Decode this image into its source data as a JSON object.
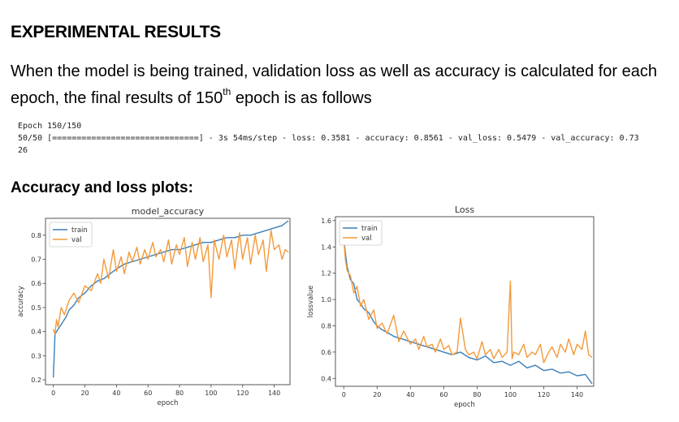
{
  "heading": "EXPERIMENTAL RESULTS",
  "paragraph": {
    "before": "When the model is being trained, validation loss as well as accuracy is calculated for each epoch, the final results of 150",
    "sup": "th",
    "after": " epoch is as follows"
  },
  "console": {
    "line1": "Epoch 150/150",
    "line2": "50/50 [==============================] - 3s 54ms/step - loss: 0.3581 - accuracy: 0.8561 - val_loss: 0.5479 - val_accuracy: 0.73",
    "line3": "26"
  },
  "subheading": "Accuracy and loss plots:",
  "colors": {
    "train": "#3a7fb8",
    "val": "#f39a3a"
  },
  "chart_data": [
    {
      "type": "line",
      "title": "model_accuracy",
      "xlabel": "epoch",
      "ylabel": "accuracy",
      "xlim": [
        -5,
        150
      ],
      "ylim": [
        0.18,
        0.87
      ],
      "xticks": [
        0,
        20,
        40,
        60,
        80,
        100,
        120,
        140
      ],
      "yticks": [
        0.2,
        0.3,
        0.4,
        0.5,
        0.6,
        0.7,
        0.8
      ],
      "legend": "top-left",
      "grid": false,
      "series": [
        {
          "name": "train",
          "x": [
            0,
            1,
            2,
            3,
            5,
            8,
            10,
            13,
            16,
            20,
            24,
            28,
            32,
            36,
            40,
            45,
            50,
            55,
            60,
            65,
            70,
            75,
            80,
            85,
            90,
            95,
            100,
            105,
            110,
            115,
            120,
            125,
            130,
            135,
            140,
            145,
            149
          ],
          "y": [
            0.21,
            0.39,
            0.4,
            0.41,
            0.43,
            0.46,
            0.49,
            0.51,
            0.54,
            0.56,
            0.59,
            0.61,
            0.62,
            0.64,
            0.66,
            0.68,
            0.69,
            0.7,
            0.71,
            0.72,
            0.73,
            0.74,
            0.74,
            0.75,
            0.76,
            0.77,
            0.77,
            0.78,
            0.79,
            0.79,
            0.8,
            0.8,
            0.81,
            0.82,
            0.83,
            0.84,
            0.86
          ]
        },
        {
          "name": "val",
          "x": [
            0,
            1,
            2,
            3,
            5,
            7,
            10,
            13,
            16,
            20,
            24,
            28,
            30,
            32,
            35,
            38,
            40,
            43,
            45,
            48,
            50,
            53,
            55,
            58,
            60,
            63,
            65,
            68,
            70,
            73,
            75,
            78,
            80,
            83,
            85,
            88,
            90,
            93,
            95,
            98,
            100,
            102,
            105,
            108,
            110,
            113,
            115,
            118,
            120,
            123,
            125,
            128,
            130,
            133,
            135,
            138,
            140,
            143,
            145,
            147,
            149
          ],
          "y": [
            0.41,
            0.39,
            0.45,
            0.42,
            0.5,
            0.47,
            0.53,
            0.56,
            0.52,
            0.59,
            0.57,
            0.64,
            0.6,
            0.7,
            0.62,
            0.74,
            0.65,
            0.71,
            0.64,
            0.73,
            0.69,
            0.75,
            0.68,
            0.74,
            0.7,
            0.77,
            0.71,
            0.74,
            0.69,
            0.78,
            0.68,
            0.76,
            0.72,
            0.79,
            0.67,
            0.77,
            0.7,
            0.79,
            0.69,
            0.76,
            0.54,
            0.78,
            0.7,
            0.8,
            0.71,
            0.78,
            0.66,
            0.81,
            0.7,
            0.79,
            0.68,
            0.8,
            0.72,
            0.78,
            0.65,
            0.82,
            0.74,
            0.76,
            0.7,
            0.74,
            0.73
          ]
        }
      ]
    },
    {
      "type": "line",
      "title": "Loss",
      "xlabel": "epoch",
      "ylabel": "lossvalue",
      "xlim": [
        -5,
        150
      ],
      "ylim": [
        0.34,
        1.63
      ],
      "xticks": [
        0,
        20,
        40,
        60,
        80,
        100,
        120,
        140
      ],
      "yticks": [
        0.4,
        0.6,
        0.8,
        1.0,
        1.2,
        1.4,
        1.6
      ],
      "legend": "top-left",
      "grid": false,
      "series": [
        {
          "name": "train",
          "x": [
            0,
            1,
            2,
            4,
            6,
            8,
            10,
            12,
            15,
            18,
            20,
            23,
            26,
            30,
            35,
            40,
            45,
            50,
            55,
            60,
            65,
            70,
            75,
            80,
            85,
            90,
            95,
            100,
            105,
            110,
            115,
            120,
            125,
            130,
            135,
            140,
            145,
            149
          ],
          "y": [
            1.46,
            1.35,
            1.25,
            1.15,
            1.12,
            1.0,
            0.97,
            0.93,
            0.9,
            0.83,
            0.8,
            0.77,
            0.75,
            0.72,
            0.7,
            0.68,
            0.66,
            0.64,
            0.62,
            0.6,
            0.58,
            0.6,
            0.56,
            0.54,
            0.57,
            0.52,
            0.53,
            0.5,
            0.53,
            0.48,
            0.5,
            0.46,
            0.47,
            0.44,
            0.45,
            0.42,
            0.43,
            0.36
          ]
        },
        {
          "name": "val",
          "x": [
            0,
            1,
            2,
            4,
            6,
            8,
            10,
            12,
            15,
            18,
            20,
            23,
            26,
            30,
            33,
            36,
            40,
            43,
            45,
            48,
            50,
            53,
            55,
            58,
            60,
            63,
            65,
            68,
            70,
            73,
            75,
            78,
            80,
            83,
            85,
            88,
            90,
            93,
            95,
            98,
            100,
            101,
            102,
            105,
            108,
            110,
            113,
            115,
            118,
            120,
            123,
            125,
            128,
            130,
            133,
            135,
            138,
            140,
            143,
            145,
            147,
            149
          ],
          "y": [
            1.45,
            1.3,
            1.22,
            1.18,
            1.05,
            1.1,
            0.95,
            1.0,
            0.85,
            0.92,
            0.78,
            0.82,
            0.74,
            0.88,
            0.68,
            0.76,
            0.66,
            0.7,
            0.62,
            0.72,
            0.64,
            0.66,
            0.6,
            0.7,
            0.62,
            0.65,
            0.58,
            0.6,
            0.86,
            0.62,
            0.58,
            0.6,
            0.55,
            0.68,
            0.58,
            0.62,
            0.55,
            0.62,
            0.56,
            0.6,
            1.14,
            0.55,
            0.6,
            0.58,
            0.66,
            0.56,
            0.6,
            0.58,
            0.66,
            0.52,
            0.6,
            0.64,
            0.56,
            0.66,
            0.6,
            0.7,
            0.58,
            0.66,
            0.62,
            0.76,
            0.58,
            0.56
          ]
        }
      ]
    }
  ]
}
